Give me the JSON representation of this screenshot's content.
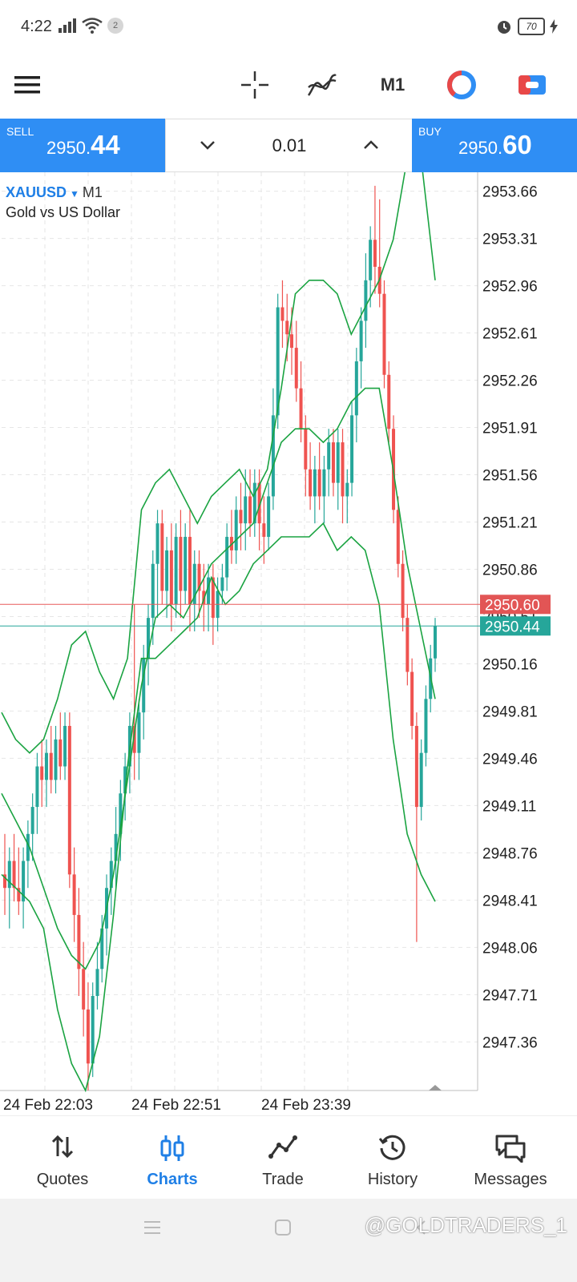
{
  "status_bar": {
    "time": "4:22",
    "notification_count": "2",
    "battery": "70"
  },
  "toolbar": {
    "timeframe": "M1"
  },
  "trade": {
    "sell_label": "SELL",
    "sell_price_prefix": "2950.",
    "sell_price_suffix": "44",
    "buy_label": "BUY",
    "buy_price_prefix": "2950.",
    "buy_price_suffix": "60",
    "lot": "0.01"
  },
  "chart": {
    "symbol": "XAUUSD",
    "timeframe": "M1",
    "description": "Gold vs US Dollar",
    "bid_label": "2950.44",
    "ask_label": "2950.60"
  },
  "chart_data": {
    "type": "candlestick",
    "y_ticks": [
      "2953.66",
      "2953.31",
      "2952.96",
      "2952.61",
      "2952.26",
      "2951.91",
      "2951.56",
      "2951.21",
      "2950.86",
      "2950.51",
      "2950.16",
      "2949.81",
      "2949.46",
      "2949.11",
      "2948.76",
      "2948.41",
      "2948.06",
      "2947.71",
      "2947.36"
    ],
    "x_labels": [
      "24 Feb 22:03",
      "24 Feb 22:51",
      "24 Feb 23:39"
    ],
    "ylim": [
      2947.0,
      2953.8
    ],
    "bid": 2950.44,
    "ask": 2950.6,
    "up_color": "#26a69a",
    "down_color": "#ef5350",
    "band_color": "#1aa341",
    "candles": [
      {
        "o": 2948.6,
        "h": 2948.9,
        "l": 2948.3,
        "c": 2948.5
      },
      {
        "o": 2948.5,
        "h": 2948.8,
        "l": 2948.2,
        "c": 2948.7
      },
      {
        "o": 2948.7,
        "h": 2948.9,
        "l": 2948.4,
        "c": 2948.5
      },
      {
        "o": 2948.5,
        "h": 2948.8,
        "l": 2948.3,
        "c": 2948.4
      },
      {
        "o": 2948.4,
        "h": 2948.8,
        "l": 2948.2,
        "c": 2948.7
      },
      {
        "o": 2948.7,
        "h": 2949.0,
        "l": 2948.5,
        "c": 2948.9
      },
      {
        "o": 2948.9,
        "h": 2949.2,
        "l": 2948.7,
        "c": 2949.1
      },
      {
        "o": 2949.1,
        "h": 2949.5,
        "l": 2948.9,
        "c": 2949.4
      },
      {
        "o": 2949.4,
        "h": 2949.6,
        "l": 2949.1,
        "c": 2949.3
      },
      {
        "o": 2949.3,
        "h": 2949.6,
        "l": 2949.1,
        "c": 2949.5
      },
      {
        "o": 2949.5,
        "h": 2949.7,
        "l": 2949.2,
        "c": 2949.3
      },
      {
        "o": 2949.3,
        "h": 2949.7,
        "l": 2949.2,
        "c": 2949.6
      },
      {
        "o": 2949.6,
        "h": 2949.8,
        "l": 2949.3,
        "c": 2949.4
      },
      {
        "o": 2949.4,
        "h": 2949.8,
        "l": 2949.3,
        "c": 2949.7
      },
      {
        "o": 2949.7,
        "h": 2949.8,
        "l": 2948.5,
        "c": 2948.6
      },
      {
        "o": 2948.6,
        "h": 2948.8,
        "l": 2948.1,
        "c": 2948.3
      },
      {
        "o": 2948.3,
        "h": 2948.5,
        "l": 2947.7,
        "c": 2947.9
      },
      {
        "o": 2947.9,
        "h": 2948.1,
        "l": 2947.4,
        "c": 2947.6
      },
      {
        "o": 2947.6,
        "h": 2947.8,
        "l": 2947.0,
        "c": 2947.2
      },
      {
        "o": 2947.2,
        "h": 2947.8,
        "l": 2947.1,
        "c": 2947.7
      },
      {
        "o": 2947.7,
        "h": 2948.1,
        "l": 2947.6,
        "c": 2947.9
      },
      {
        "o": 2947.9,
        "h": 2948.3,
        "l": 2947.8,
        "c": 2948.2
      },
      {
        "o": 2948.2,
        "h": 2948.6,
        "l": 2948.0,
        "c": 2948.5
      },
      {
        "o": 2948.5,
        "h": 2948.8,
        "l": 2948.3,
        "c": 2948.7
      },
      {
        "o": 2948.7,
        "h": 2949.1,
        "l": 2948.5,
        "c": 2948.9
      },
      {
        "o": 2948.9,
        "h": 2949.3,
        "l": 2948.7,
        "c": 2949.2
      },
      {
        "o": 2949.2,
        "h": 2949.5,
        "l": 2949.0,
        "c": 2949.4
      },
      {
        "o": 2949.4,
        "h": 2949.8,
        "l": 2949.2,
        "c": 2949.7
      },
      {
        "o": 2949.7,
        "h": 2950.6,
        "l": 2949.3,
        "c": 2949.5
      },
      {
        "o": 2949.5,
        "h": 2949.9,
        "l": 2949.3,
        "c": 2949.8
      },
      {
        "o": 2949.8,
        "h": 2950.3,
        "l": 2949.6,
        "c": 2950.2
      },
      {
        "o": 2950.2,
        "h": 2950.6,
        "l": 2950.0,
        "c": 2950.5
      },
      {
        "o": 2950.5,
        "h": 2951.0,
        "l": 2950.3,
        "c": 2950.9
      },
      {
        "o": 2950.9,
        "h": 2951.3,
        "l": 2950.5,
        "c": 2951.2
      },
      {
        "o": 2951.2,
        "h": 2951.3,
        "l": 2950.6,
        "c": 2950.7
      },
      {
        "o": 2950.7,
        "h": 2951.1,
        "l": 2950.5,
        "c": 2951.0
      },
      {
        "o": 2951.0,
        "h": 2951.2,
        "l": 2950.4,
        "c": 2950.6
      },
      {
        "o": 2950.6,
        "h": 2951.2,
        "l": 2950.5,
        "c": 2951.1
      },
      {
        "o": 2951.1,
        "h": 2951.3,
        "l": 2950.5,
        "c": 2950.7
      },
      {
        "o": 2950.7,
        "h": 2951.2,
        "l": 2950.6,
        "c": 2951.1
      },
      {
        "o": 2951.1,
        "h": 2951.3,
        "l": 2950.4,
        "c": 2950.6
      },
      {
        "o": 2950.6,
        "h": 2951.0,
        "l": 2950.4,
        "c": 2950.9
      },
      {
        "o": 2950.9,
        "h": 2951.0,
        "l": 2950.5,
        "c": 2950.7
      },
      {
        "o": 2950.7,
        "h": 2950.9,
        "l": 2950.4,
        "c": 2950.6
      },
      {
        "o": 2950.6,
        "h": 2950.9,
        "l": 2950.4,
        "c": 2950.8
      },
      {
        "o": 2950.8,
        "h": 2950.9,
        "l": 2950.3,
        "c": 2950.5
      },
      {
        "o": 2950.5,
        "h": 2950.8,
        "l": 2950.4,
        "c": 2950.7
      },
      {
        "o": 2950.7,
        "h": 2950.9,
        "l": 2950.6,
        "c": 2950.8
      },
      {
        "o": 2950.8,
        "h": 2951.2,
        "l": 2950.7,
        "c": 2951.1
      },
      {
        "o": 2951.1,
        "h": 2951.3,
        "l": 2950.9,
        "c": 2951.0
      },
      {
        "o": 2951.0,
        "h": 2951.4,
        "l": 2950.9,
        "c": 2951.3
      },
      {
        "o": 2951.3,
        "h": 2951.5,
        "l": 2951.0,
        "c": 2951.2
      },
      {
        "o": 2951.2,
        "h": 2951.6,
        "l": 2951.0,
        "c": 2951.4
      },
      {
        "o": 2951.4,
        "h": 2951.6,
        "l": 2951.1,
        "c": 2951.2
      },
      {
        "o": 2951.2,
        "h": 2951.6,
        "l": 2951.1,
        "c": 2951.5
      },
      {
        "o": 2951.5,
        "h": 2951.6,
        "l": 2951.0,
        "c": 2951.2
      },
      {
        "o": 2951.2,
        "h": 2951.4,
        "l": 2950.9,
        "c": 2951.1
      },
      {
        "o": 2951.1,
        "h": 2951.5,
        "l": 2951.0,
        "c": 2951.4
      },
      {
        "o": 2951.4,
        "h": 2952.2,
        "l": 2951.3,
        "c": 2952.0
      },
      {
        "o": 2952.0,
        "h": 2952.9,
        "l": 2951.9,
        "c": 2952.8
      },
      {
        "o": 2952.8,
        "h": 2953.0,
        "l": 2952.5,
        "c": 2952.7
      },
      {
        "o": 2952.7,
        "h": 2952.9,
        "l": 2952.4,
        "c": 2952.6
      },
      {
        "o": 2952.6,
        "h": 2952.8,
        "l": 2952.3,
        "c": 2952.5
      },
      {
        "o": 2952.5,
        "h": 2952.7,
        "l": 2952.1,
        "c": 2952.2
      },
      {
        "o": 2952.2,
        "h": 2952.4,
        "l": 2951.8,
        "c": 2951.9
      },
      {
        "o": 2951.9,
        "h": 2952.0,
        "l": 2951.4,
        "c": 2951.6
      },
      {
        "o": 2951.6,
        "h": 2951.8,
        "l": 2951.3,
        "c": 2951.4
      },
      {
        "o": 2951.4,
        "h": 2951.7,
        "l": 2951.2,
        "c": 2951.6
      },
      {
        "o": 2951.6,
        "h": 2951.8,
        "l": 2951.3,
        "c": 2951.4
      },
      {
        "o": 2951.4,
        "h": 2951.7,
        "l": 2951.2,
        "c": 2951.6
      },
      {
        "o": 2951.6,
        "h": 2951.9,
        "l": 2951.4,
        "c": 2951.8
      },
      {
        "o": 2951.8,
        "h": 2951.9,
        "l": 2951.4,
        "c": 2951.5
      },
      {
        "o": 2951.5,
        "h": 2951.9,
        "l": 2951.3,
        "c": 2951.8
      },
      {
        "o": 2951.8,
        "h": 2951.9,
        "l": 2951.2,
        "c": 2951.4
      },
      {
        "o": 2951.4,
        "h": 2951.6,
        "l": 2951.2,
        "c": 2951.5
      },
      {
        "o": 2951.5,
        "h": 2952.1,
        "l": 2951.4,
        "c": 2952.0
      },
      {
        "o": 2952.0,
        "h": 2952.5,
        "l": 2951.8,
        "c": 2952.4
      },
      {
        "o": 2952.4,
        "h": 2952.8,
        "l": 2952.2,
        "c": 2952.7
      },
      {
        "o": 2952.7,
        "h": 2953.2,
        "l": 2952.5,
        "c": 2953.0
      },
      {
        "o": 2953.0,
        "h": 2953.4,
        "l": 2952.8,
        "c": 2953.3
      },
      {
        "o": 2953.3,
        "h": 2953.7,
        "l": 2952.9,
        "c": 2953.1
      },
      {
        "o": 2953.1,
        "h": 2953.6,
        "l": 2952.8,
        "c": 2952.9
      },
      {
        "o": 2952.9,
        "h": 2953.0,
        "l": 2952.2,
        "c": 2952.3
      },
      {
        "o": 2952.3,
        "h": 2952.4,
        "l": 2951.8,
        "c": 2951.9
      },
      {
        "o": 2951.9,
        "h": 2952.0,
        "l": 2951.2,
        "c": 2951.3
      },
      {
        "o": 2951.3,
        "h": 2951.4,
        "l": 2950.8,
        "c": 2950.9
      },
      {
        "o": 2950.9,
        "h": 2951.0,
        "l": 2950.4,
        "c": 2950.5
      },
      {
        "o": 2950.5,
        "h": 2950.6,
        "l": 2950.0,
        "c": 2950.1
      },
      {
        "o": 2950.1,
        "h": 2950.2,
        "l": 2949.6,
        "c": 2949.7
      },
      {
        "o": 2949.7,
        "h": 2949.8,
        "l": 2948.1,
        "c": 2949.1
      },
      {
        "o": 2949.1,
        "h": 2949.6,
        "l": 2949.0,
        "c": 2949.5
      },
      {
        "o": 2949.5,
        "h": 2950.0,
        "l": 2949.4,
        "c": 2949.9
      },
      {
        "o": 2949.9,
        "h": 2950.3,
        "l": 2949.8,
        "c": 2950.2
      },
      {
        "o": 2950.2,
        "h": 2950.5,
        "l": 2950.1,
        "c": 2950.44
      }
    ],
    "bands": {
      "upper": [
        2949.8,
        2949.6,
        2949.5,
        2949.6,
        2949.9,
        2950.3,
        2950.4,
        2950.1,
        2949.9,
        2950.2,
        2951.3,
        2951.5,
        2951.6,
        2951.4,
        2951.2,
        2951.4,
        2951.5,
        2951.6,
        2951.4,
        2951.6,
        2952.2,
        2952.9,
        2953.0,
        2953.0,
        2952.9,
        2952.6,
        2952.8,
        2953.0,
        2953.3,
        2953.9,
        2953.9,
        2953.0
      ],
      "middle": [
        2949.2,
        2949.0,
        2948.8,
        2948.5,
        2948.2,
        2948.0,
        2947.9,
        2948.1,
        2948.6,
        2949.3,
        2950.0,
        2950.5,
        2950.6,
        2950.5,
        2950.7,
        2950.9,
        2951.0,
        2951.1,
        2951.2,
        2951.5,
        2951.8,
        2951.9,
        2951.9,
        2951.8,
        2951.9,
        2952.1,
        2952.2,
        2952.2,
        2951.6,
        2950.9,
        2950.4,
        2949.9
      ],
      "lower": [
        2948.6,
        2948.5,
        2948.4,
        2948.2,
        2947.6,
        2947.2,
        2947.0,
        2947.4,
        2948.3,
        2949.4,
        2950.2,
        2950.2,
        2950.3,
        2950.4,
        2950.5,
        2950.8,
        2950.6,
        2950.7,
        2950.9,
        2951.0,
        2951.1,
        2951.1,
        2951.1,
        2951.2,
        2951.0,
        2951.1,
        2951.0,
        2950.6,
        2949.6,
        2948.9,
        2948.6,
        2948.4
      ]
    }
  },
  "nav": {
    "items": [
      {
        "label": "Quotes"
      },
      {
        "label": "Charts"
      },
      {
        "label": "Trade"
      },
      {
        "label": "History"
      },
      {
        "label": "Messages"
      }
    ]
  },
  "watermark": "@GOLDTRADERS_1"
}
